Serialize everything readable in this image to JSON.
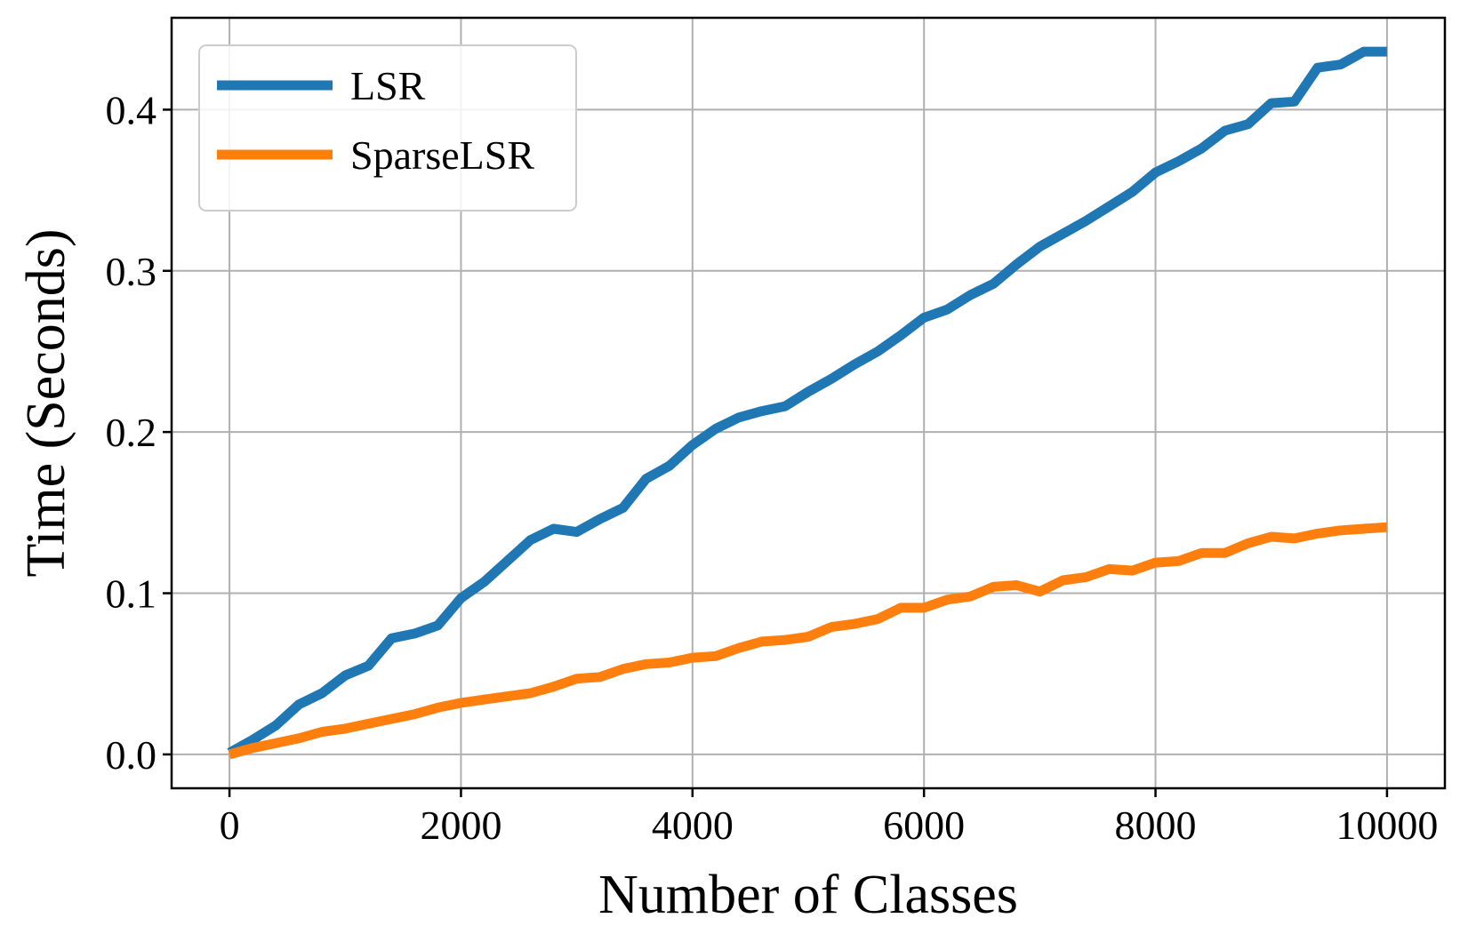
{
  "chart_data": {
    "type": "line",
    "title": "",
    "xlabel": "Number of Classes",
    "ylabel": "Time (Seconds)",
    "xlim": [
      -500,
      10500
    ],
    "ylim": [
      -0.021,
      0.457
    ],
    "grid": true,
    "legend_position": "top-left",
    "x_ticks": [
      0,
      2000,
      4000,
      6000,
      8000,
      10000
    ],
    "x_tick_labels": [
      "0",
      "2000",
      "4000",
      "6000",
      "8000",
      "10000"
    ],
    "y_ticks": [
      0.0,
      0.1,
      0.2,
      0.3,
      0.4
    ],
    "y_tick_labels": [
      "0.0",
      "0.1",
      "0.2",
      "0.3",
      "0.4"
    ],
    "x": [
      0,
      200,
      400,
      600,
      800,
      1000,
      1200,
      1400,
      1600,
      1800,
      2000,
      2200,
      2400,
      2600,
      2800,
      3000,
      3200,
      3400,
      3600,
      3800,
      4000,
      4200,
      4400,
      4600,
      4800,
      5000,
      5200,
      5400,
      5600,
      5800,
      6000,
      6200,
      6400,
      6600,
      6800,
      7000,
      7200,
      7400,
      7600,
      7800,
      8000,
      8200,
      8400,
      8600,
      8800,
      9000,
      9200,
      9400,
      9600,
      9800,
      10000
    ],
    "series": [
      {
        "name": "LSR",
        "color": "#1f77b4",
        "values": [
          0.001,
          0.009,
          0.018,
          0.031,
          0.038,
          0.049,
          0.055,
          0.072,
          0.075,
          0.08,
          0.097,
          0.107,
          0.12,
          0.133,
          0.14,
          0.138,
          0.146,
          0.153,
          0.171,
          0.179,
          0.192,
          0.202,
          0.209,
          0.213,
          0.216,
          0.225,
          0.233,
          0.242,
          0.25,
          0.26,
          0.271,
          0.276,
          0.285,
          0.292,
          0.304,
          0.315,
          0.323,
          0.331,
          0.34,
          0.349,
          0.361,
          0.368,
          0.376,
          0.387,
          0.391,
          0.404,
          0.405,
          0.426,
          0.428,
          0.436,
          0.436
        ]
      },
      {
        "name": "SparseLSR",
        "color": "#ff7f0e",
        "values": [
          0.0,
          0.004,
          0.007,
          0.01,
          0.014,
          0.016,
          0.019,
          0.022,
          0.025,
          0.029,
          0.032,
          0.034,
          0.036,
          0.038,
          0.042,
          0.047,
          0.048,
          0.053,
          0.056,
          0.057,
          0.06,
          0.061,
          0.066,
          0.07,
          0.071,
          0.073,
          0.079,
          0.081,
          0.084,
          0.091,
          0.091,
          0.096,
          0.098,
          0.104,
          0.105,
          0.101,
          0.108,
          0.11,
          0.115,
          0.114,
          0.119,
          0.12,
          0.125,
          0.125,
          0.131,
          0.135,
          0.134,
          0.137,
          0.139,
          0.14,
          0.141
        ]
      }
    ]
  }
}
